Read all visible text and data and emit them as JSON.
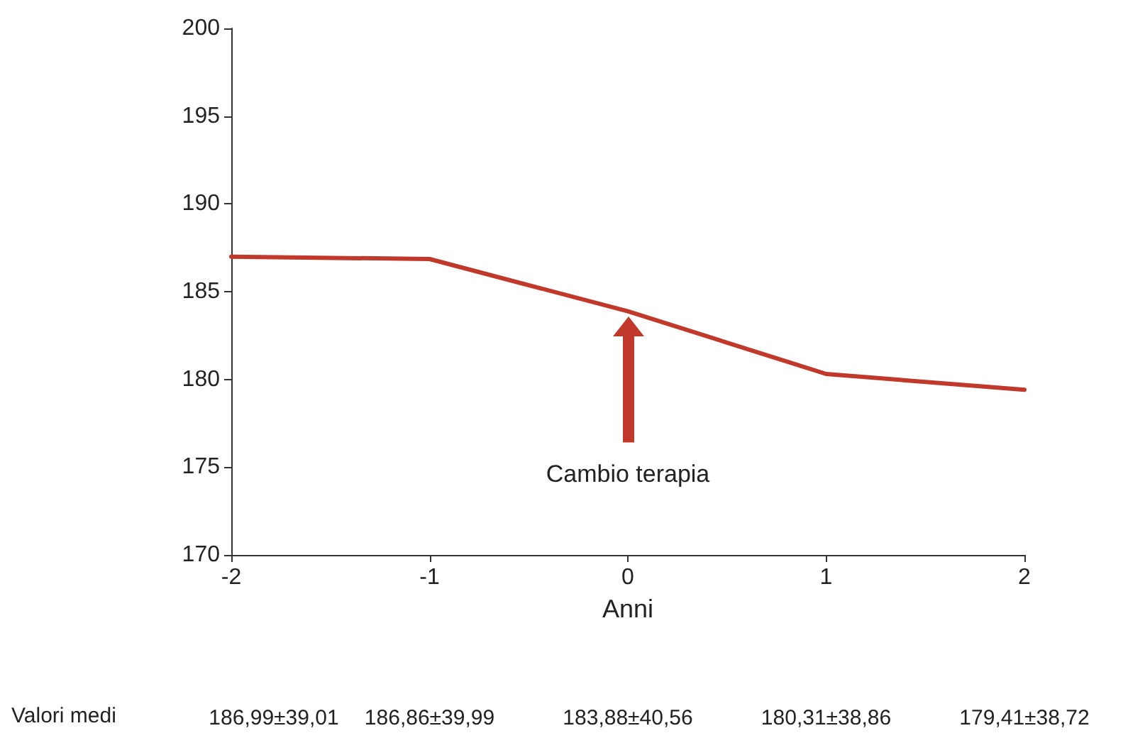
{
  "chart_data": {
    "type": "line",
    "xlabel": "Anni",
    "x": [
      -2,
      -1,
      0,
      1,
      2
    ],
    "values": [
      186.99,
      186.86,
      183.88,
      180.31,
      179.41
    ],
    "color": "#c0392b",
    "marker": "none",
    "line_style": "solid",
    "xlim": [
      -2,
      2
    ],
    "xticks": [
      -2,
      -1,
      0,
      1,
      2
    ],
    "ylim": [
      170,
      200
    ],
    "yticks": [
      170,
      175,
      180,
      185,
      190,
      195,
      200
    ],
    "annotations": [
      "Cambio terapia",
      "Valori medi",
      "186,99±39,01",
      "186,86±39,99",
      "183,88±40,56",
      "180,31±38,86",
      "179,41±38,72"
    ]
  }
}
